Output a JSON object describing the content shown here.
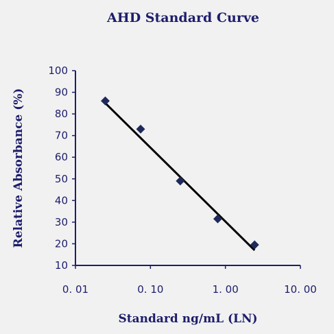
{
  "chart_data": {
    "type": "scatter",
    "title": "AHD Standard Curve",
    "xlabel": "Standard ng/mL (LN)",
    "ylabel": "Relative Absorbance (%)",
    "x_scale": "log",
    "xlim": [
      0.01,
      10.0
    ],
    "ylim": [
      10,
      100
    ],
    "x_ticks": [
      0.01,
      0.1,
      1.0,
      10.0
    ],
    "x_tick_labels": [
      "0. 01",
      "0. 10",
      "1. 00",
      "10. 00"
    ],
    "y_ticks": [
      10,
      20,
      30,
      40,
      50,
      60,
      70,
      80,
      90,
      100
    ],
    "y_tick_labels": [
      "10",
      "20",
      "30",
      "40",
      "50",
      "60",
      "70",
      "80",
      "90",
      "100"
    ],
    "grid": false,
    "series": [
      {
        "points": [
          {
            "x": 0.025,
            "y": 86
          },
          {
            "x": 0.074,
            "y": 73
          },
          {
            "x": 0.25,
            "y": 49
          },
          {
            "x": 0.79,
            "y": 31.5
          },
          {
            "x": 2.45,
            "y": 19.5
          }
        ],
        "color": "#1f2a5a",
        "marker": "diamond"
      }
    ],
    "trendline": {
      "type": "logarithmic",
      "x_range": [
        0.025,
        2.45
      ],
      "y_at_start": 85,
      "y_at_end": 17,
      "color": "#000000"
    }
  }
}
